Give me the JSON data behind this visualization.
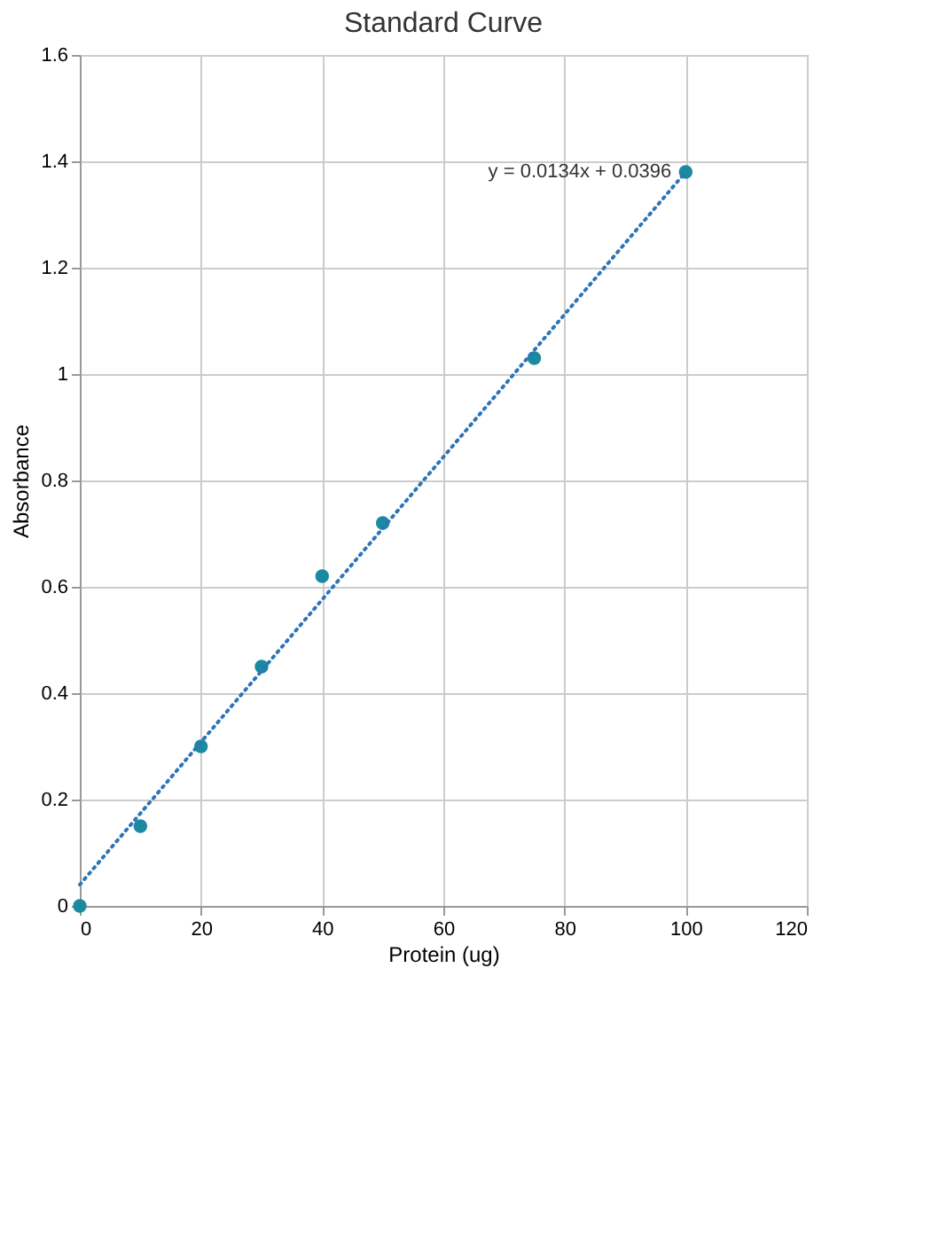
{
  "chart_data": {
    "type": "scatter",
    "title": "Standard Curve",
    "xlabel": "Protein (ug)",
    "ylabel": "Absorbance",
    "series": [
      {
        "color": "#1b8aa0",
        "x": [
          0,
          10,
          20,
          30,
          40,
          50,
          75,
          100
        ],
        "values": [
          0,
          0.15,
          0.3,
          0.45,
          0.62,
          0.72,
          1.03,
          1.38
        ],
        "marker": "circle"
      },
      {
        "type": "line",
        "color": "#2e75b6",
        "x": [
          0,
          100
        ],
        "values": [
          0.04,
          1.38
        ],
        "line_style": "dotted",
        "marker": "none"
      }
    ],
    "annotations": [
      {
        "text": "y = 0.0134x + 0.0396",
        "x": 100,
        "y": 1.38
      }
    ],
    "xlim": [
      0,
      120
    ],
    "xticks": [
      0,
      20,
      40,
      60,
      80,
      100,
      120
    ],
    "ylim": [
      0,
      1.6
    ],
    "yticks": [
      0,
      0.2,
      0.4,
      0.6,
      0.8,
      1,
      1.2,
      1.4,
      1.6
    ],
    "grid": true
  }
}
